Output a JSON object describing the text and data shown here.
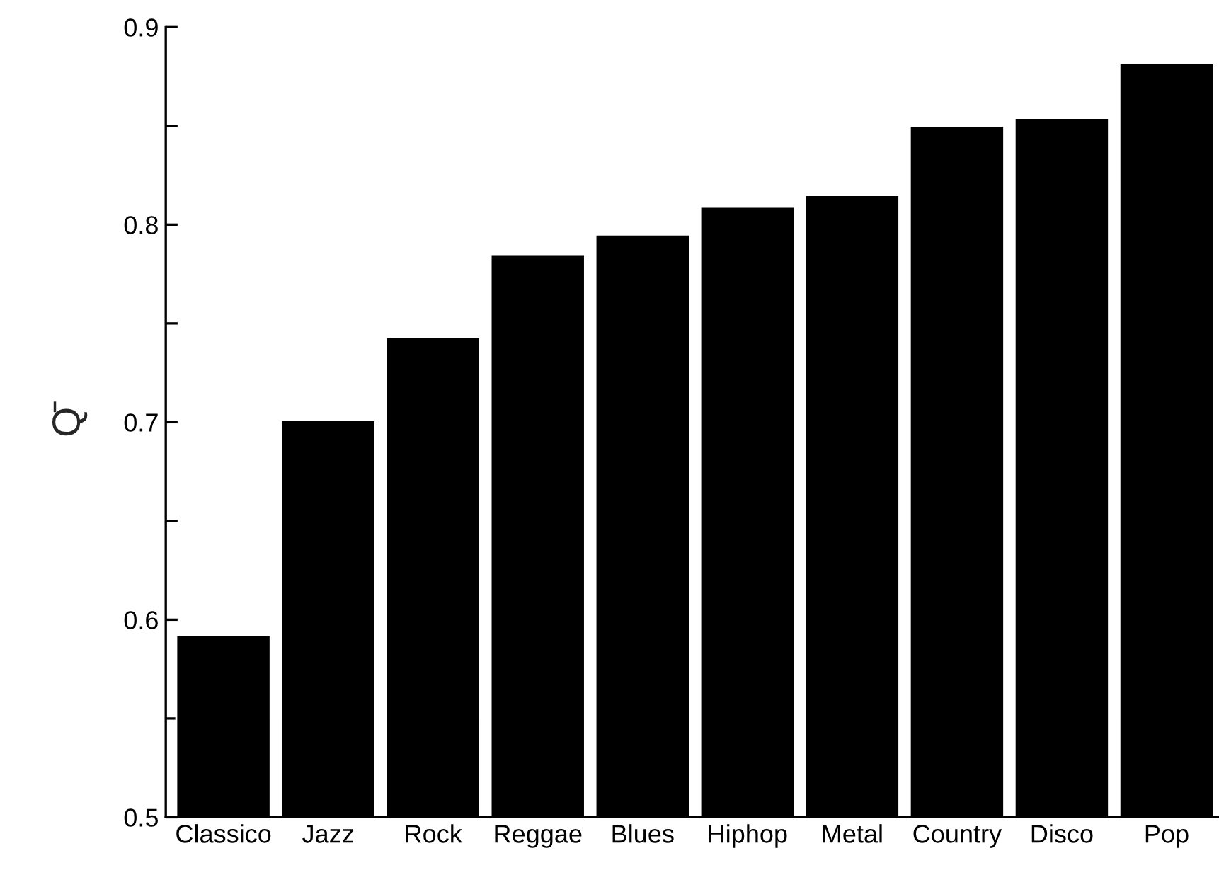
{
  "chart_data": {
    "type": "bar",
    "categories": [
      "Classico",
      "Jazz",
      "Rock",
      "Reggae",
      "Blues",
      "Hiphop",
      "Metal",
      "Country",
      "Disco",
      "Pop"
    ],
    "values": [
      0.592,
      0.701,
      0.743,
      0.785,
      0.795,
      0.809,
      0.815,
      0.85,
      0.854,
      0.882
    ],
    "color": "#000000",
    "ylabel": "Q̄",
    "ylim": [
      0.5,
      0.9
    ],
    "yticks": [
      0.5,
      {
        "value": 0.55,
        "label": null
      },
      0.6,
      {
        "value": 0.65,
        "label": null
      },
      0.7,
      {
        "value": 0.75,
        "label": null
      },
      0.8,
      {
        "value": 0.85,
        "label": null
      },
      0.9
    ],
    "grid": false,
    "legend": false
  }
}
